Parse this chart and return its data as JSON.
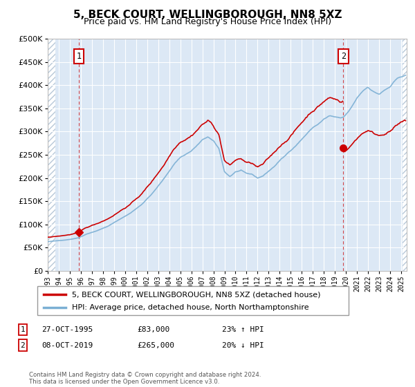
{
  "title": "5, BECK COURT, WELLINGBOROUGH, NN8 5XZ",
  "subtitle": "Price paid vs. HM Land Registry's House Price Index (HPI)",
  "ylim": [
    0,
    500000
  ],
  "xlim_start": 1993.0,
  "xlim_end": 2025.5,
  "sale1_date": 1995.82,
  "sale1_price": 83000,
  "sale2_date": 2019.77,
  "sale2_price": 265000,
  "legend_line1": "5, BECK COURT, WELLINGBOROUGH, NN8 5XZ (detached house)",
  "legend_line2": "HPI: Average price, detached house, North Northamptonshire",
  "footer": "Contains HM Land Registry data © Crown copyright and database right 2024.\nThis data is licensed under the Open Government Licence v3.0.",
  "line_color_red": "#cc0000",
  "line_color_blue": "#7bafd4",
  "background_plot": "#dce8f5",
  "grid_color": "#c8d8e8",
  "vline_color": "#cc0000",
  "hatch_color": "#b8c8d8"
}
